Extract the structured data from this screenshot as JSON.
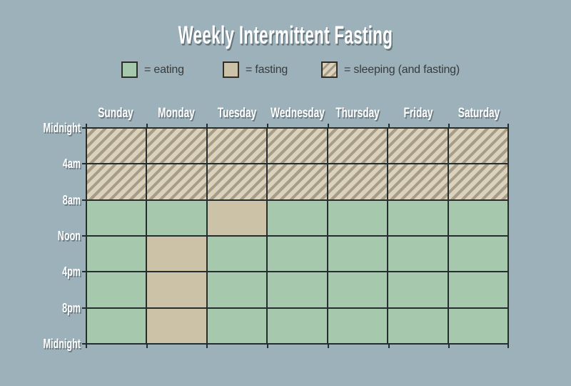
{
  "chart_data": {
    "type": "heatmap",
    "title": "Weekly Intermittent Fasting",
    "columns": [
      "Sunday",
      "Monday",
      "Tuesday",
      "Wednesday",
      "Thursday",
      "Friday",
      "Saturday"
    ],
    "time_axis_labels": [
      "Midnight",
      "4am",
      "8am",
      "Noon",
      "4pm",
      "8pm",
      "Midnight"
    ],
    "legend": [
      {
        "key": "eating",
        "label": "= eating"
      },
      {
        "key": "fasting",
        "label": "= fasting"
      },
      {
        "key": "sleeping",
        "label": "= sleeping (and fasting)"
      }
    ],
    "colors": {
      "background": "#9cb1ba",
      "eating": "#a6c9ad",
      "fasting": "#cbc2a8",
      "sleeping_stripe_light": "#dbd2bc",
      "sleeping_stripe_dark": "#a79c88",
      "grid_line": "#242e2e",
      "legend_text": "#3a3a3a",
      "heading_text": "#ffffff"
    },
    "rows": [
      {
        "time_start": "Midnight",
        "time_end": "4am",
        "cells": [
          "sleeping",
          "sleeping",
          "sleeping",
          "sleeping",
          "sleeping",
          "sleeping",
          "sleeping"
        ]
      },
      {
        "time_start": "4am",
        "time_end": "8am",
        "cells": [
          "sleeping",
          "sleeping",
          "sleeping",
          "sleeping",
          "sleeping",
          "sleeping",
          "sleeping"
        ]
      },
      {
        "time_start": "8am",
        "time_end": "Noon",
        "cells": [
          "eating",
          "eating",
          "fasting",
          "eating",
          "eating",
          "eating",
          "eating"
        ]
      },
      {
        "time_start": "Noon",
        "time_end": "4pm",
        "cells": [
          "eating",
          "fasting",
          "eating",
          "eating",
          "eating",
          "eating",
          "eating"
        ]
      },
      {
        "time_start": "4pm",
        "time_end": "8pm",
        "cells": [
          "eating",
          "fasting",
          "eating",
          "eating",
          "eating",
          "eating",
          "eating"
        ]
      },
      {
        "time_start": "8pm",
        "time_end": "Midnight",
        "cells": [
          "eating",
          "fasting",
          "eating",
          "eating",
          "eating",
          "eating",
          "eating"
        ]
      }
    ]
  }
}
